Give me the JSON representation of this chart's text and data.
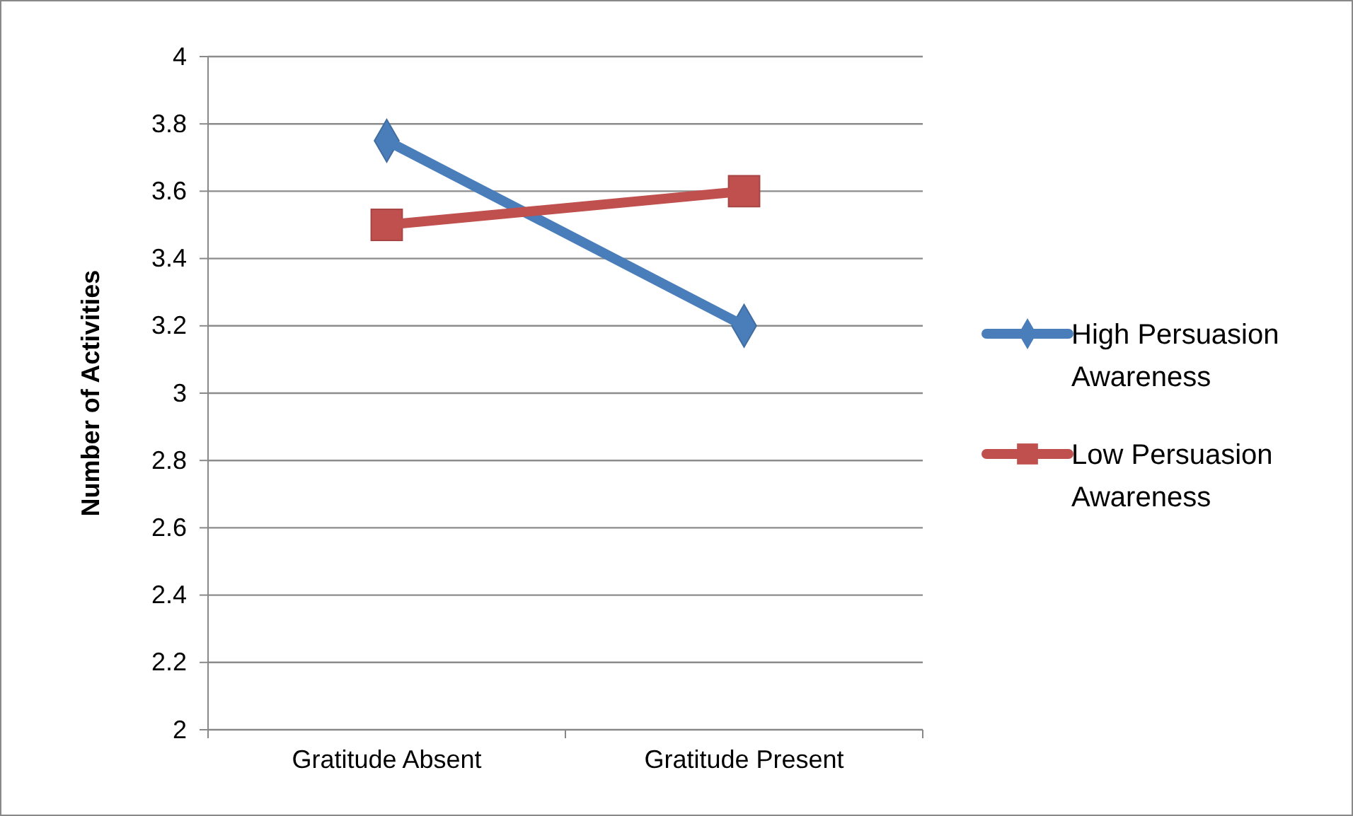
{
  "chart_data": {
    "type": "line",
    "ylabel": "Number of Activities",
    "categories": [
      "Gratitude Absent",
      "Gratitude Present"
    ],
    "series": [
      {
        "name": "High Persuasion Awareness",
        "color": "#4a7ebb",
        "values": [
          3.75,
          3.2
        ],
        "marker": "diamond"
      },
      {
        "name": "Low Persuasion Awareness",
        "color": "#c0504d",
        "values": [
          3.5,
          3.6
        ],
        "marker": "square"
      }
    ],
    "ylim": [
      2,
      4
    ],
    "yticks": [
      2,
      2.2,
      2.4,
      2.6,
      2.8,
      3,
      3.2,
      3.4,
      3.6,
      3.8,
      4
    ],
    "grid": "y",
    "legend": "right",
    "line_style": "solid"
  }
}
